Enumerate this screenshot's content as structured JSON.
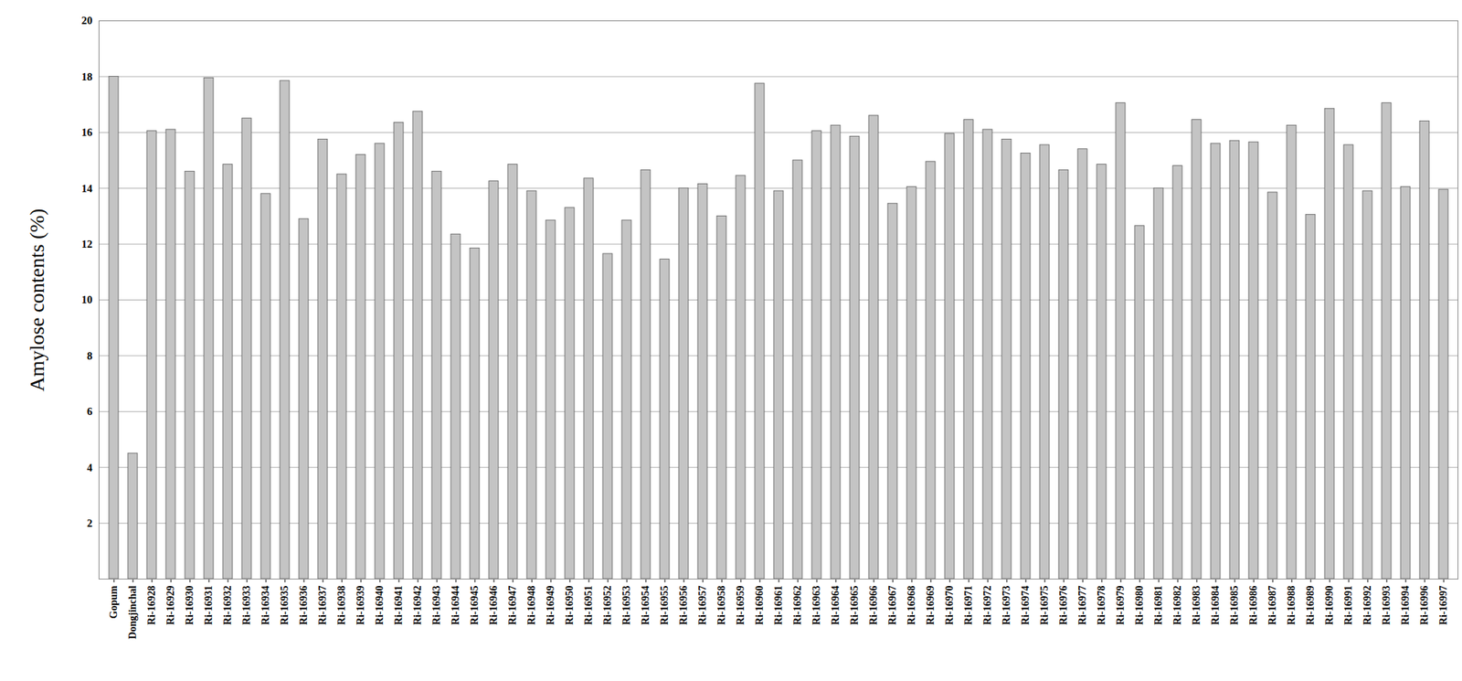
{
  "chart_data": {
    "type": "bar",
    "y_label": "Amylose contents (%)",
    "categories": [
      "Gopum",
      "Dongjinchal",
      "Ri-16928",
      "Ri-16929",
      "Ri-16930",
      "Ri-16931",
      "Ri-16932",
      "Ri-16933",
      "Ri-16934",
      "Ri-16935",
      "Ri-16936",
      "Ri-16937",
      "Ri-16938",
      "Ri-16939",
      "Ri-16940",
      "Ri-16941",
      "Ri-16942",
      "Ri-16943",
      "Ri-16944",
      "Ri-16945",
      "Ri-16946",
      "Ri-16947",
      "Ri-16948",
      "Ri-16949",
      "Ri-16950",
      "Ri-16951",
      "Ri-16952",
      "Ri-16953",
      "Ri-16954",
      "Ri-16955",
      "Ri-16956",
      "Ri-16957",
      "Ri-16958",
      "Ri-16959",
      "Ri-16960",
      "Ri-16961",
      "Ri-16962",
      "Ri-16963",
      "Ri-16964",
      "Ri-16965",
      "Ri-16966",
      "Ri-16967",
      "Ri-16968",
      "Ri-16969",
      "Ri-16970",
      "Ri-16971",
      "Ri-16972",
      "Ri-16973",
      "Ri-16974",
      "Ri-16975",
      "Ri-16976",
      "Ri-16977",
      "Ri-16978",
      "Ri-16979",
      "Ri-16980",
      "Ri-16981",
      "Ri-16982",
      "Ri-16983",
      "Ri-16984",
      "Ri-16985",
      "Ri-16986",
      "Ri-16987",
      "Ri-16988",
      "Ri-16989",
      "Ri-16990",
      "Ri-16991",
      "Ri-16992",
      "Ri-16993",
      "Ri-16994",
      "Ri-16996",
      "Ri-16997"
    ],
    "values": [
      18.0,
      4.5,
      16.05,
      16.1,
      14.6,
      17.95,
      14.85,
      16.5,
      13.8,
      17.85,
      12.9,
      15.75,
      14.5,
      15.2,
      15.6,
      16.35,
      16.75,
      14.6,
      12.35,
      11.85,
      14.25,
      14.85,
      13.9,
      12.85,
      13.3,
      14.35,
      11.65,
      12.85,
      14.65,
      11.45,
      14.0,
      14.15,
      13.0,
      14.45,
      17.75,
      13.9,
      15.0,
      16.05,
      16.25,
      15.85,
      16.6,
      13.45,
      14.05,
      14.95,
      15.95,
      16.45,
      16.1,
      15.75,
      15.25,
      15.55,
      14.65,
      15.4,
      14.85,
      17.05,
      12.65,
      14.0,
      14.8,
      16.45,
      15.6,
      15.7,
      15.65,
      13.85,
      16.25,
      13.05,
      16.85,
      15.55,
      13.9,
      17.05,
      14.05,
      16.4,
      13.95
    ],
    "color": "#c4c4c4",
    "ylim": [
      0,
      20
    ],
    "yticks": [
      2,
      4,
      6,
      8,
      10,
      12,
      14,
      16,
      18,
      20
    ],
    "grid": true
  }
}
